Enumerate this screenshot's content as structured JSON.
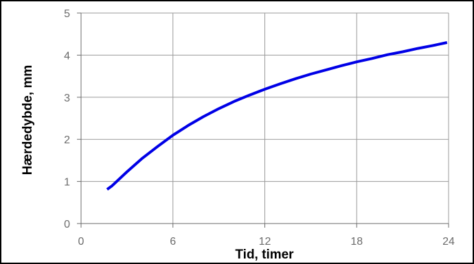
{
  "chart_data": {
    "type": "line",
    "title": "",
    "xlabel": "Tid, timer",
    "ylabel": "Hærdedybde, mm",
    "xlim": [
      0,
      24
    ],
    "ylim": [
      0,
      5
    ],
    "xticks": [
      0,
      6,
      12,
      18,
      24
    ],
    "yticks": [
      0,
      1,
      2,
      3,
      4,
      5
    ],
    "grid": true,
    "legend": "none",
    "series": [
      {
        "color": "#0000e6",
        "x": [
          1.7,
          2,
          3,
          4,
          5,
          6,
          7,
          8,
          9,
          10,
          11,
          12,
          13,
          14,
          15,
          16,
          17,
          18,
          19,
          20,
          21,
          22,
          23,
          23.9
        ],
        "y": [
          0.81,
          0.89,
          1.23,
          1.55,
          1.83,
          2.1,
          2.33,
          2.54,
          2.73,
          2.9,
          3.05,
          3.19,
          3.32,
          3.44,
          3.55,
          3.65,
          3.75,
          3.84,
          3.92,
          4.01,
          4.08,
          4.16,
          4.23,
          4.3
        ]
      }
    ]
  }
}
